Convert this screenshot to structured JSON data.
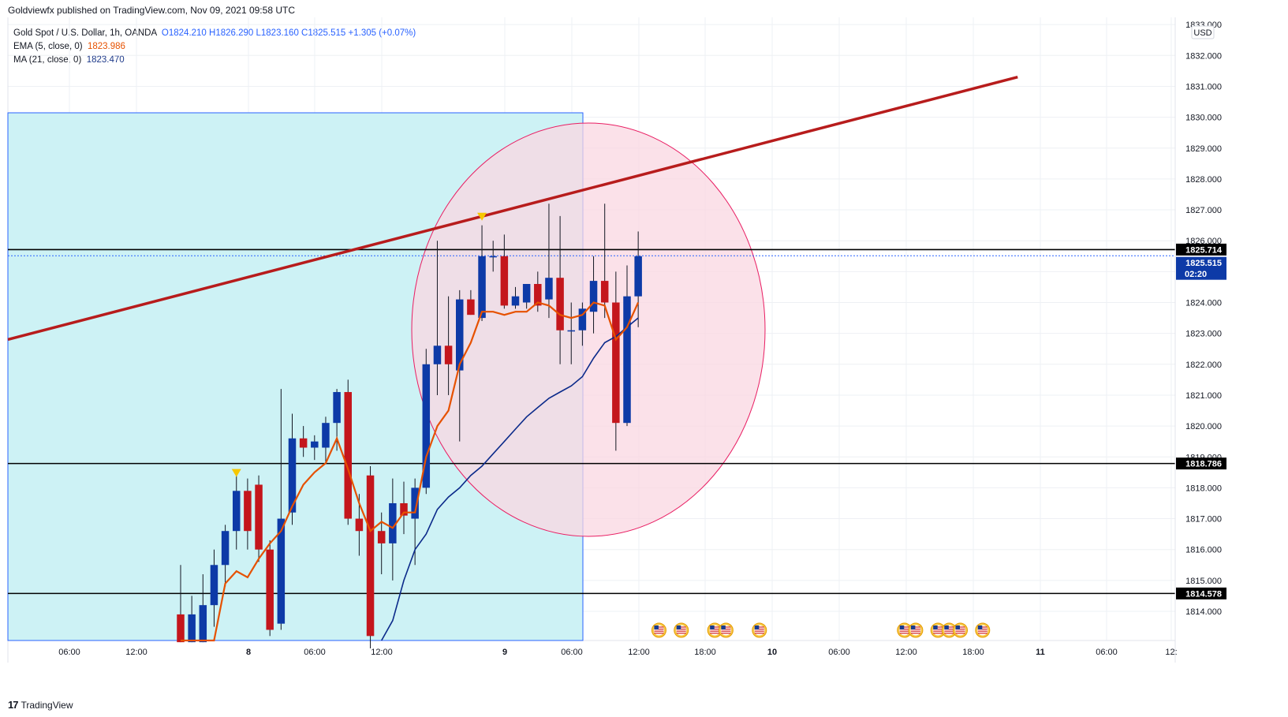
{
  "header": {
    "published": "Goldviewfx published on TradingView.com, Nov 09, 2021 09:58 UTC"
  },
  "legend": {
    "symbol": "Gold Spot / U.S. Dollar, 1h, OANDA",
    "ohlc": "O1824.210  H1826.290  L1823.160  C1825.515  +1.305 (+0.07%)",
    "ema_label": "EMA (5, close, 0)",
    "ema_value": "1823.986",
    "ma_label": "MA (21, close, 0)",
    "ma_value": "1823.470"
  },
  "currency": "USD",
  "footer": {
    "logo": "17",
    "brand": "TradingView"
  },
  "colors": {
    "bull": "#0d3aa7",
    "bear": "#c4161c",
    "ema": "#e65100",
    "ma": "#0b2a8a",
    "trendline": "#b71c1c",
    "rect_fill": "#cdf2f5",
    "circle_fill": "#f9d7e2",
    "circle_stroke": "#e91e63"
  },
  "chart_data": {
    "type": "candlestick",
    "symbol": "Gold Spot / U.S. Dollar",
    "timeframe": "1h",
    "ylim": [
      1813,
      1833
    ],
    "y_ticks": [
      "1814.000",
      "1815.000",
      "1816.000",
      "1817.000",
      "1818.000",
      "1819.000",
      "1820.000",
      "1821.000",
      "1822.000",
      "1823.000",
      "1824.000",
      "1825.000",
      "1826.000",
      "1827.000",
      "1828.000",
      "1829.000",
      "1830.000",
      "1831.000",
      "1832.000",
      "1833.000"
    ],
    "x_ticks": [
      "06:00",
      "12:00",
      "8",
      "06:00",
      "12:00",
      "9",
      "06:00",
      "12:00",
      "18:00",
      "10",
      "06:00",
      "12:00",
      "18:00",
      "11",
      "06:00",
      "12:"
    ],
    "x_tick_bold": [
      false,
      false,
      true,
      false,
      false,
      true,
      false,
      false,
      false,
      true,
      false,
      false,
      false,
      true,
      false,
      false
    ],
    "candles": [
      {
        "o": 1813.9,
        "h": 1815.5,
        "l": 1813.0,
        "c": 1813.0
      },
      {
        "o": 1813.0,
        "h": 1814.5,
        "l": 1813.0,
        "c": 1813.9
      },
      {
        "o": 1813.0,
        "h": 1815.2,
        "l": 1813.0,
        "c": 1814.2
      },
      {
        "o": 1814.2,
        "h": 1816.0,
        "l": 1813.5,
        "c": 1815.5
      },
      {
        "o": 1815.5,
        "h": 1816.8,
        "l": 1814.8,
        "c": 1816.6
      },
      {
        "o": 1816.6,
        "h": 1818.4,
        "l": 1816.0,
        "c": 1817.9
      },
      {
        "o": 1817.9,
        "h": 1818.3,
        "l": 1816.0,
        "c": 1816.6
      },
      {
        "o": 1818.1,
        "h": 1818.4,
        "l": 1815.6,
        "c": 1816.0
      },
      {
        "o": 1816.0,
        "h": 1816.3,
        "l": 1813.2,
        "c": 1813.4
      },
      {
        "o": 1813.6,
        "h": 1821.2,
        "l": 1813.4,
        "c": 1817.0
      },
      {
        "o": 1817.2,
        "h": 1820.4,
        "l": 1816.8,
        "c": 1819.6
      },
      {
        "o": 1819.6,
        "h": 1820.0,
        "l": 1819.0,
        "c": 1819.3
      },
      {
        "o": 1819.3,
        "h": 1819.7,
        "l": 1818.9,
        "c": 1819.5
      },
      {
        "o": 1819.3,
        "h": 1820.3,
        "l": 1818.8,
        "c": 1820.1
      },
      {
        "o": 1820.1,
        "h": 1821.2,
        "l": 1819.2,
        "c": 1821.1
      },
      {
        "o": 1821.1,
        "h": 1821.5,
        "l": 1816.8,
        "c": 1817.0
      },
      {
        "o": 1817.0,
        "h": 1817.8,
        "l": 1815.8,
        "c": 1816.6
      },
      {
        "o": 1818.4,
        "h": 1818.7,
        "l": 1812.8,
        "c": 1813.2
      },
      {
        "o": 1816.6,
        "h": 1817.2,
        "l": 1815.2,
        "c": 1816.2
      },
      {
        "o": 1816.2,
        "h": 1818.3,
        "l": 1815.0,
        "c": 1817.5
      },
      {
        "o": 1817.5,
        "h": 1818.2,
        "l": 1816.5,
        "c": 1817.1
      },
      {
        "o": 1817.0,
        "h": 1818.3,
        "l": 1815.5,
        "c": 1818.0
      },
      {
        "o": 1818.0,
        "h": 1822.5,
        "l": 1817.8,
        "c": 1822.0
      },
      {
        "o": 1822.0,
        "h": 1826.0,
        "l": 1821.0,
        "c": 1822.6
      },
      {
        "o": 1822.6,
        "h": 1824.2,
        "l": 1821.0,
        "c": 1822.0
      },
      {
        "o": 1821.8,
        "h": 1824.4,
        "l": 1819.5,
        "c": 1824.1
      },
      {
        "o": 1824.1,
        "h": 1824.4,
        "l": 1823.6,
        "c": 1823.6
      },
      {
        "o": 1823.5,
        "h": 1826.5,
        "l": 1823.4,
        "c": 1825.5
      },
      {
        "o": 1825.5,
        "h": 1826.0,
        "l": 1825.0,
        "c": 1825.5
      },
      {
        "o": 1825.5,
        "h": 1826.2,
        "l": 1823.8,
        "c": 1823.9
      },
      {
        "o": 1823.9,
        "h": 1824.5,
        "l": 1823.8,
        "c": 1824.2
      },
      {
        "o": 1824.0,
        "h": 1824.6,
        "l": 1823.8,
        "c": 1824.6
      },
      {
        "o": 1824.6,
        "h": 1825.0,
        "l": 1823.7,
        "c": 1823.9
      },
      {
        "o": 1824.1,
        "h": 1827.2,
        "l": 1823.5,
        "c": 1824.8
      },
      {
        "o": 1824.8,
        "h": 1826.8,
        "l": 1822.0,
        "c": 1823.1
      },
      {
        "o": 1823.1,
        "h": 1824.0,
        "l": 1822.0,
        "c": 1823.1
      },
      {
        "o": 1823.1,
        "h": 1824.0,
        "l": 1822.6,
        "c": 1823.8
      },
      {
        "o": 1823.7,
        "h": 1825.5,
        "l": 1823.0,
        "c": 1824.7
      },
      {
        "o": 1824.7,
        "h": 1827.2,
        "l": 1823.5,
        "c": 1824.0
      },
      {
        "o": 1824.0,
        "h": 1825.0,
        "l": 1819.2,
        "c": 1820.1
      },
      {
        "o": 1820.1,
        "h": 1825.2,
        "l": 1820.0,
        "c": 1824.2
      },
      {
        "o": 1824.2,
        "h": 1826.3,
        "l": 1823.2,
        "c": 1825.5
      }
    ],
    "ema": [
      1813.0,
      1813.0,
      1813.0,
      1813.0,
      1814.9,
      1815.3,
      1815.1,
      1815.7,
      1816.2,
      1816.6,
      1817.4,
      1818.1,
      1818.5,
      1818.8,
      1819.6,
      1818.6,
      1817.5,
      1816.6,
      1816.9,
      1816.7,
      1817.2,
      1817.2,
      1819.0,
      1820.0,
      1820.5,
      1822.0,
      1822.7,
      1823.7,
      1823.7,
      1823.6,
      1823.7,
      1823.7,
      1824.0,
      1823.9,
      1823.6,
      1823.5,
      1823.6,
      1824.0,
      1823.9,
      1822.8,
      1823.2,
      1824.0
    ],
    "ma": [
      null,
      null,
      null,
      null,
      null,
      null,
      null,
      null,
      null,
      null,
      null,
      null,
      null,
      null,
      null,
      null,
      null,
      null,
      1813.0,
      1813.7,
      1815.0,
      1816.0,
      1816.5,
      1817.3,
      1817.7,
      1818.0,
      1818.4,
      1818.7,
      1819.1,
      1819.5,
      1819.9,
      1820.3,
      1820.6,
      1820.9,
      1821.1,
      1821.3,
      1821.6,
      1822.2,
      1822.7,
      1822.9,
      1823.2,
      1823.5
    ],
    "price_labels": [
      {
        "value": "1825.714",
        "price": 1825.714,
        "style": "black"
      },
      {
        "value": "1825.515",
        "price": 1825.515,
        "style": "blue"
      },
      {
        "value": "02:20",
        "price": 1825.515,
        "style": "countdown"
      },
      {
        "value": "1818.786",
        "price": 1818.786,
        "style": "black"
      },
      {
        "value": "1814.578",
        "price": 1814.578,
        "style": "black"
      }
    ],
    "horizontal_lines": [
      1825.714,
      1818.786,
      1814.578
    ],
    "trendline": {
      "from": {
        "candle": -16,
        "price": 1822.8
      },
      "to": {
        "candle": 75,
        "price": 1831.3
      }
    },
    "down_markers": [
      {
        "candle": 5,
        "price": 1818.3
      },
      {
        "candle": 27,
        "price": 1826.6
      }
    ],
    "event_icons": [
      {
        "candle": 43
      },
      {
        "candle": 45
      },
      {
        "candle": 48
      },
      {
        "candle": 49
      },
      {
        "candle": 52
      },
      {
        "candle": 65
      },
      {
        "candle": 66
      },
      {
        "candle": 68
      },
      {
        "candle": 69
      },
      {
        "candle": 70
      },
      {
        "candle": 72
      }
    ]
  }
}
